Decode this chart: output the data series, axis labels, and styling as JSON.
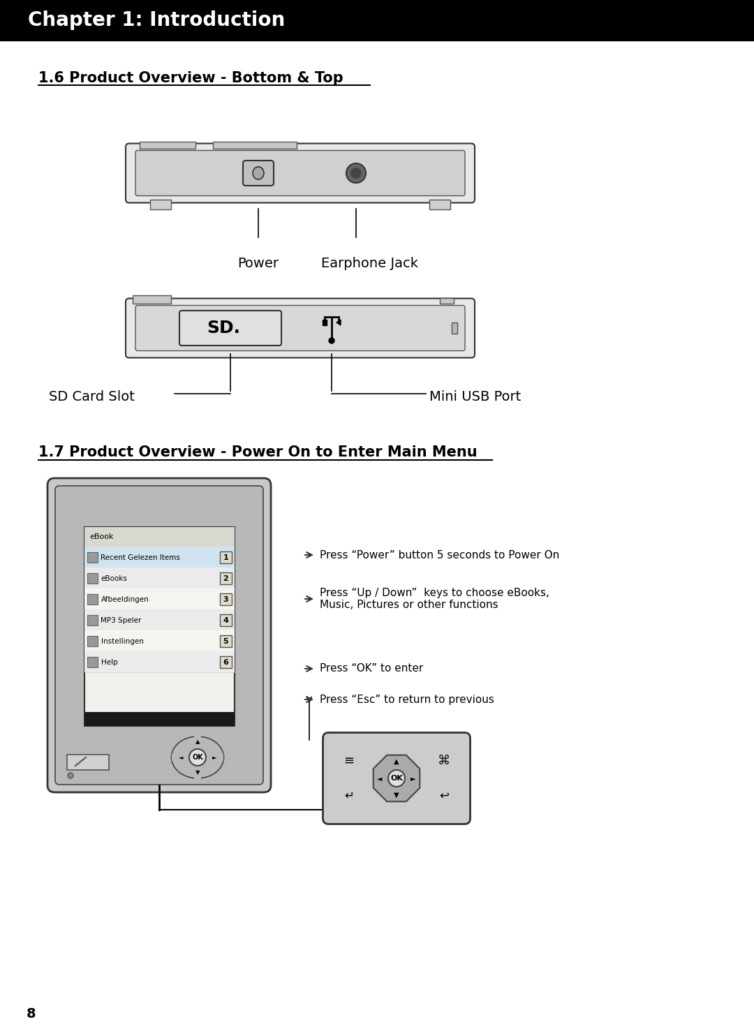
{
  "background_color": "#ffffff",
  "header_bg": "#000000",
  "header_text": "Chapter 1: Introduction",
  "header_text_color": "#ffffff",
  "header_fontsize": 20,
  "section1_title": "1.6 Product Overview - Bottom & Top",
  "section2_title": "1.7 Product Overview - Power On to Enter Main Menu",
  "section_title_fontsize": 15,
  "label_fontsize": 14,
  "body_fontsize": 11,
  "page_number": "8",
  "top_device_labels": [
    "Power",
    "Earphone Jack"
  ],
  "bottom_device_labels": [
    "SD Card Slot",
    "Mini USB Port"
  ],
  "instructions": [
    "Press “Power” button 5 seconds to Power On",
    "Press “Up / Down”  keys to choose eBooks,\nMusic, Pictures or other functions",
    "Press “OK” to enter",
    "Press “Esc” to return to previous"
  ],
  "menu_title": "eBook",
  "menu_items": [
    [
      "Recent Gelezen Items",
      "1"
    ],
    [
      "eBooks",
      "2"
    ],
    [
      "Afbeeldingen",
      "3"
    ],
    [
      "MP3 Speler",
      "4"
    ],
    [
      "Instellingen",
      "5"
    ],
    [
      "Help",
      "6"
    ]
  ]
}
